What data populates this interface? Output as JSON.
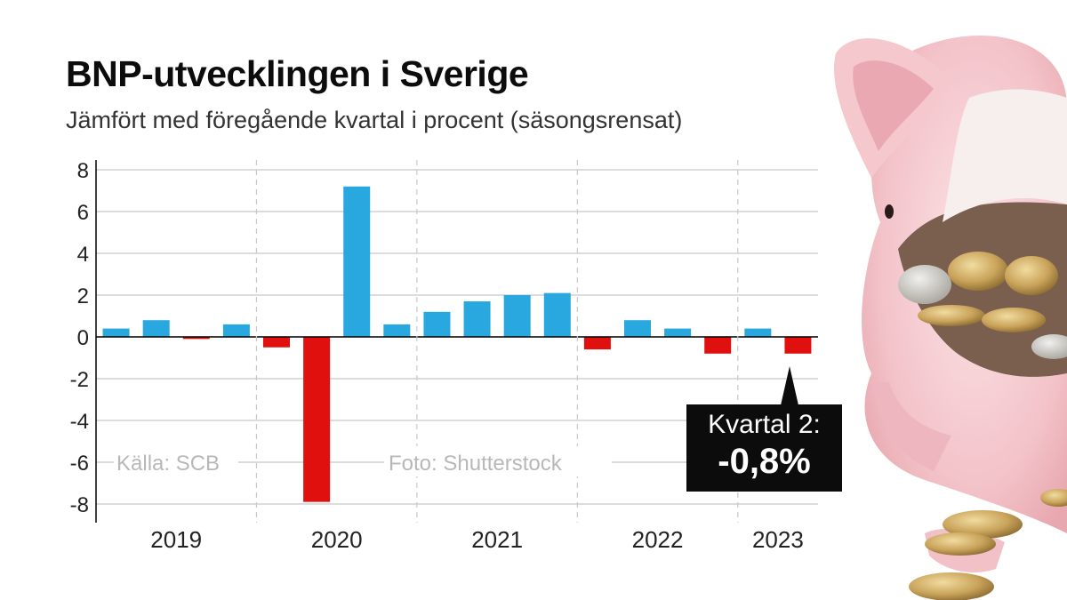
{
  "title": "BNP-utvecklingen i Sverige",
  "subtitle": "Jämfört med föregående kvartal i procent (säsongsrensat)",
  "colors": {
    "positive": "#29a8df",
    "negative": "#e0100f",
    "grid": "#c8c8c8",
    "axis": "#000000"
  },
  "chart_data": {
    "type": "bar",
    "title": "BNP-utvecklingen i Sverige",
    "subtitle": "Jämfört med föregående kvartal i procent (säsongsrensat)",
    "xlabel": "",
    "ylabel": "",
    "ylim": [
      -8,
      8
    ],
    "yticks": [
      8,
      6,
      4,
      2,
      0,
      -2,
      -4,
      -6,
      -8
    ],
    "grid": true,
    "year_labels": [
      "2019",
      "2020",
      "2021",
      "2022",
      "2023"
    ],
    "year_quarters": [
      4,
      4,
      4,
      4,
      2
    ],
    "values": [
      0.4,
      0.8,
      -0.1,
      0.6,
      -0.5,
      -7.9,
      7.2,
      0.6,
      1.2,
      1.7,
      2.0,
      2.1,
      -0.6,
      0.8,
      0.4,
      -0.8,
      0.4,
      -0.8
    ]
  },
  "source_label": "Källa: SCB",
  "photo_credit": "Foto: Shutterstock",
  "callout": {
    "label": "Kvartal 2:",
    "value": "-0,8%"
  },
  "photo_icon": "piggy-bank-with-coins-icon"
}
